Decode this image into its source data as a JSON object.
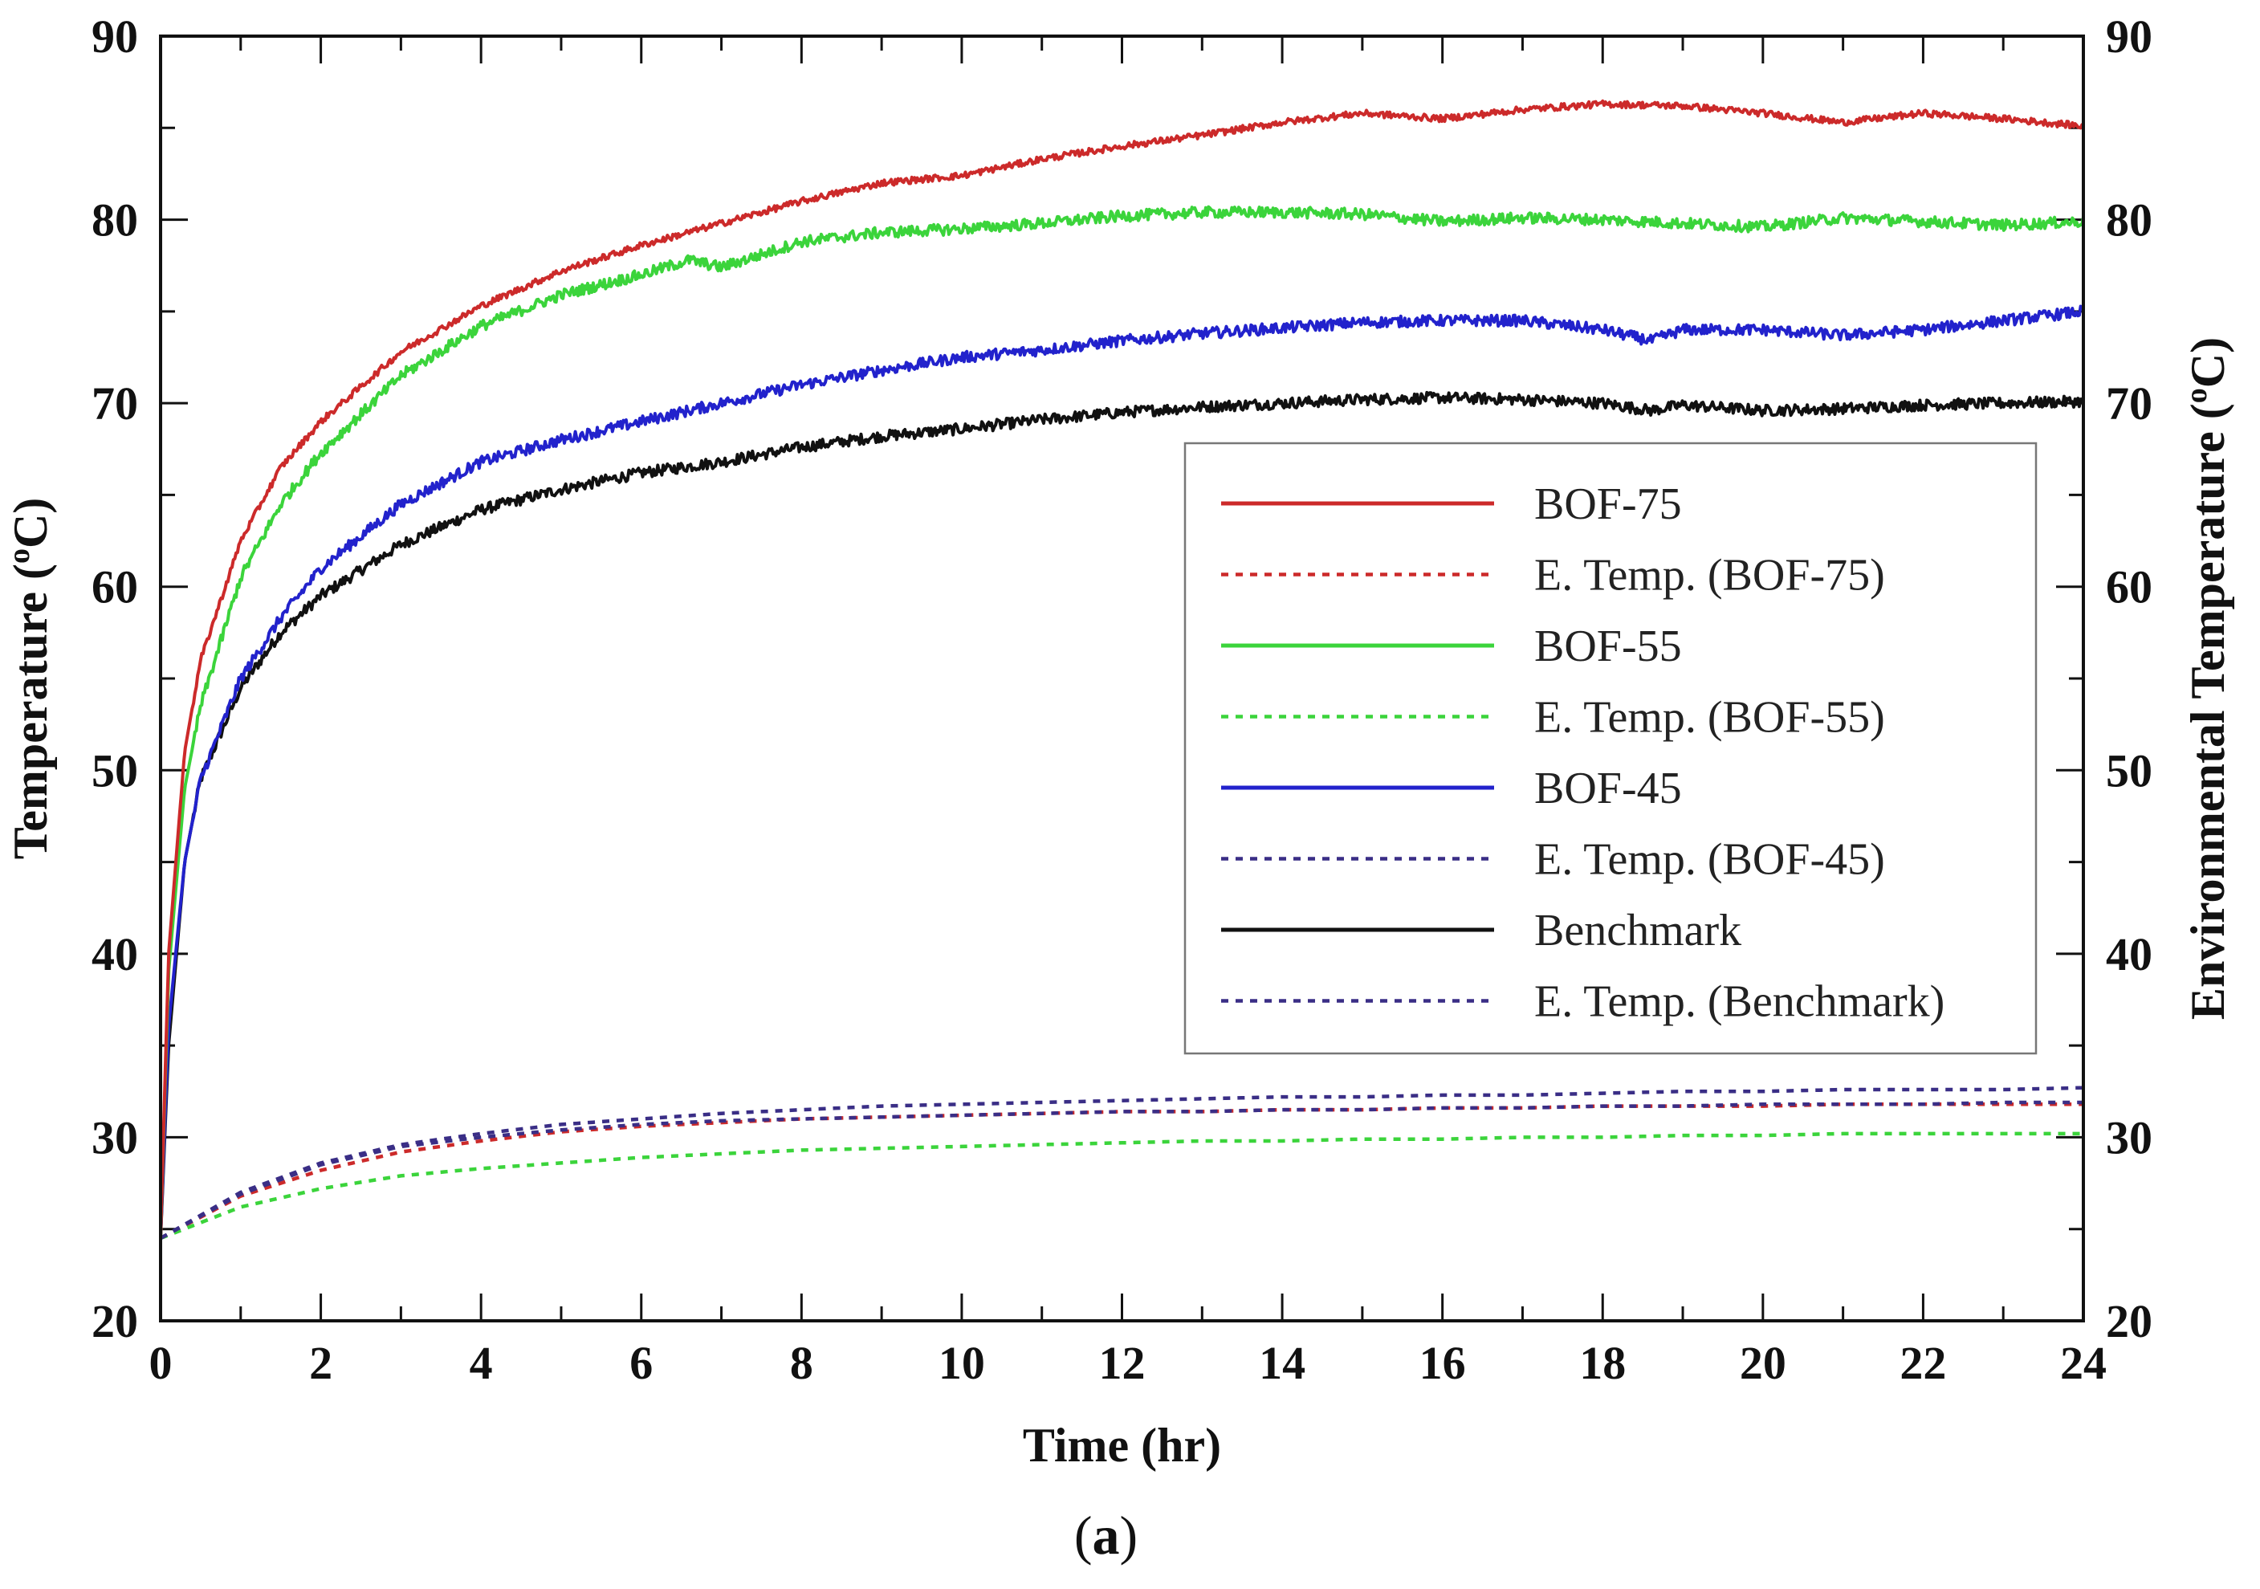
{
  "chart_data": {
    "type": "line",
    "caption": {
      "open": "(",
      "letter": "a",
      "close": ")"
    },
    "xlabel": "Time (hr)",
    "ylabel": {
      "text": "Temperature (",
      "sup": "o",
      "unit": "C)"
    },
    "y2label": {
      "text": "Environmental Temperature (",
      "sup": "o",
      "unit": "C)"
    },
    "xlim": [
      0,
      24
    ],
    "ylim": [
      20,
      90
    ],
    "y2lim": [
      20,
      90
    ],
    "xticks": [
      0,
      2,
      4,
      6,
      8,
      10,
      12,
      14,
      16,
      18,
      20,
      22,
      24
    ],
    "xtick_labels": [
      "0",
      "2",
      "4",
      "6",
      "8",
      "10",
      "12",
      "14",
      "16",
      "18",
      "20",
      "22",
      "24"
    ],
    "yticks": [
      20,
      30,
      40,
      50,
      60,
      70,
      80,
      90
    ],
    "ytick_labels": [
      "20",
      "30",
      "40",
      "50",
      "60",
      "70",
      "80",
      "90"
    ],
    "y2tick_labels": [
      "20",
      "30",
      "40",
      "50",
      "60",
      "70",
      "80",
      "90"
    ],
    "legend_position": "center-right",
    "series": [
      {
        "name": "BOF-75",
        "color": "#cc2a2a",
        "style": "solid",
        "x": [
          0,
          0.1,
          0.3,
          0.5,
          1,
          1.5,
          2,
          3,
          4,
          5,
          6,
          7,
          8,
          9,
          10,
          11,
          12,
          13,
          14,
          15,
          16,
          17,
          18,
          19,
          20,
          21,
          22,
          23,
          24
        ],
        "y": [
          24.5,
          40,
          51,
          56,
          62.5,
          66.5,
          69,
          72.8,
          75.3,
          77.2,
          78.6,
          79.8,
          81,
          82,
          82.4,
          83.3,
          84,
          84.6,
          85.3,
          85.8,
          85.5,
          86,
          86.3,
          86.2,
          85.8,
          85.3,
          85.8,
          85.5,
          85.1
        ]
      },
      {
        "name": "E. Temp. (BOF-75)",
        "color": "#cc2a2a",
        "style": "dotted",
        "x": [
          0,
          1,
          2,
          3,
          4,
          5,
          6,
          7,
          8,
          9,
          10,
          11,
          12,
          13,
          14,
          15,
          16,
          17,
          18,
          19,
          20,
          21,
          22,
          23,
          24
        ],
        "y": [
          24.5,
          26.8,
          28.2,
          29.2,
          29.8,
          30.3,
          30.6,
          30.8,
          31,
          31.1,
          31.2,
          31.3,
          31.4,
          31.4,
          31.5,
          31.5,
          31.6,
          31.6,
          31.7,
          31.7,
          31.7,
          31.8,
          31.8,
          31.8,
          31.8
        ]
      },
      {
        "name": "BOF-55",
        "color": "#3bd43b",
        "style": "solid",
        "x": [
          0,
          0.1,
          0.3,
          0.5,
          1,
          1.5,
          2,
          3,
          4,
          5,
          6,
          6.6,
          7,
          8,
          9,
          10,
          11,
          12,
          13,
          14,
          15,
          16,
          17,
          18,
          19,
          20,
          21,
          22,
          23,
          24
        ],
        "y": [
          24.5,
          39,
          49,
          53.5,
          60.5,
          64.5,
          67.3,
          71.5,
          74.2,
          75.9,
          77,
          77.8,
          77.4,
          78.8,
          79.3,
          79.5,
          79.8,
          80.2,
          80.4,
          80.4,
          80.3,
          79.9,
          80.1,
          80,
          79.8,
          79.6,
          80.1,
          79.9,
          79.7,
          79.9
        ]
      },
      {
        "name": "E. Temp. (BOF-55)",
        "color": "#3bd43b",
        "style": "dotted",
        "x": [
          0,
          1,
          2,
          3,
          4,
          5,
          6,
          7,
          8,
          9,
          10,
          11,
          12,
          13,
          14,
          15,
          16,
          17,
          18,
          19,
          20,
          21,
          22,
          23,
          24
        ],
        "y": [
          24.5,
          26.2,
          27.2,
          27.9,
          28.3,
          28.6,
          28.9,
          29.1,
          29.3,
          29.4,
          29.5,
          29.6,
          29.7,
          29.8,
          29.8,
          29.9,
          29.9,
          30,
          30,
          30.1,
          30.1,
          30.2,
          30.2,
          30.2,
          30.2
        ]
      },
      {
        "name": "BOF-45",
        "color": "#2222cc",
        "style": "solid",
        "x": [
          0,
          0.1,
          0.3,
          0.5,
          1,
          1.5,
          2,
          3,
          4,
          5,
          6,
          7,
          8,
          9,
          10,
          11,
          12,
          13,
          14,
          15,
          16,
          17,
          18,
          18.6,
          19,
          20,
          21,
          22,
          23,
          24
        ],
        "y": [
          24.5,
          36,
          45,
          49.5,
          55,
          58.3,
          61,
          64.5,
          66.8,
          68,
          69,
          70,
          71,
          71.8,
          72.5,
          72.9,
          73.4,
          73.8,
          74.1,
          74.4,
          74.5,
          74.5,
          74,
          73.4,
          74,
          74,
          73.7,
          74,
          74.5,
          75
        ]
      },
      {
        "name": "E. Temp. (BOF-45)",
        "color": "#3a2e86",
        "style": "dotted",
        "x": [
          0,
          1,
          2,
          3,
          4,
          5,
          6,
          7,
          8,
          9,
          10,
          11,
          12,
          13,
          14,
          15,
          16,
          17,
          18,
          19,
          20,
          21,
          22,
          23,
          24
        ],
        "y": [
          24.5,
          27,
          28.6,
          29.6,
          30.2,
          30.7,
          31,
          31.3,
          31.5,
          31.7,
          31.8,
          31.9,
          32,
          32.1,
          32.2,
          32.2,
          32.3,
          32.3,
          32.4,
          32.5,
          32.5,
          32.6,
          32.6,
          32.6,
          32.7
        ]
      },
      {
        "name": "Benchmark",
        "color": "#111111",
        "style": "solid",
        "x": [
          0,
          0.1,
          0.3,
          0.5,
          1,
          1.5,
          2,
          3,
          4,
          5,
          6,
          7,
          8,
          9,
          10,
          11,
          12,
          13,
          14,
          15,
          16,
          17,
          18,
          18.6,
          19,
          20,
          21,
          22,
          23,
          24
        ],
        "y": [
          24.5,
          35,
          45,
          49.5,
          54.5,
          57.5,
          59.5,
          62.3,
          64.2,
          65.3,
          66.2,
          66.8,
          67.6,
          68.2,
          68.6,
          69.1,
          69.5,
          69.8,
          70,
          70.2,
          70.3,
          70.2,
          70,
          69.6,
          69.9,
          69.6,
          69.7,
          69.9,
          70,
          70.1
        ]
      },
      {
        "name": "E. Temp. (Benchmark)",
        "color": "#3a2e86",
        "style": "dotted",
        "x": [
          0,
          1,
          2,
          3,
          4,
          5,
          6,
          7,
          8,
          9,
          10,
          11,
          12,
          13,
          14,
          15,
          16,
          17,
          18,
          19,
          20,
          21,
          22,
          23,
          24
        ],
        "y": [
          24.5,
          26.9,
          28.5,
          29.5,
          30,
          30.4,
          30.7,
          30.9,
          31,
          31.1,
          31.2,
          31.3,
          31.4,
          31.4,
          31.5,
          31.5,
          31.6,
          31.6,
          31.7,
          31.7,
          31.8,
          31.8,
          31.8,
          31.9,
          31.9
        ]
      }
    ]
  }
}
